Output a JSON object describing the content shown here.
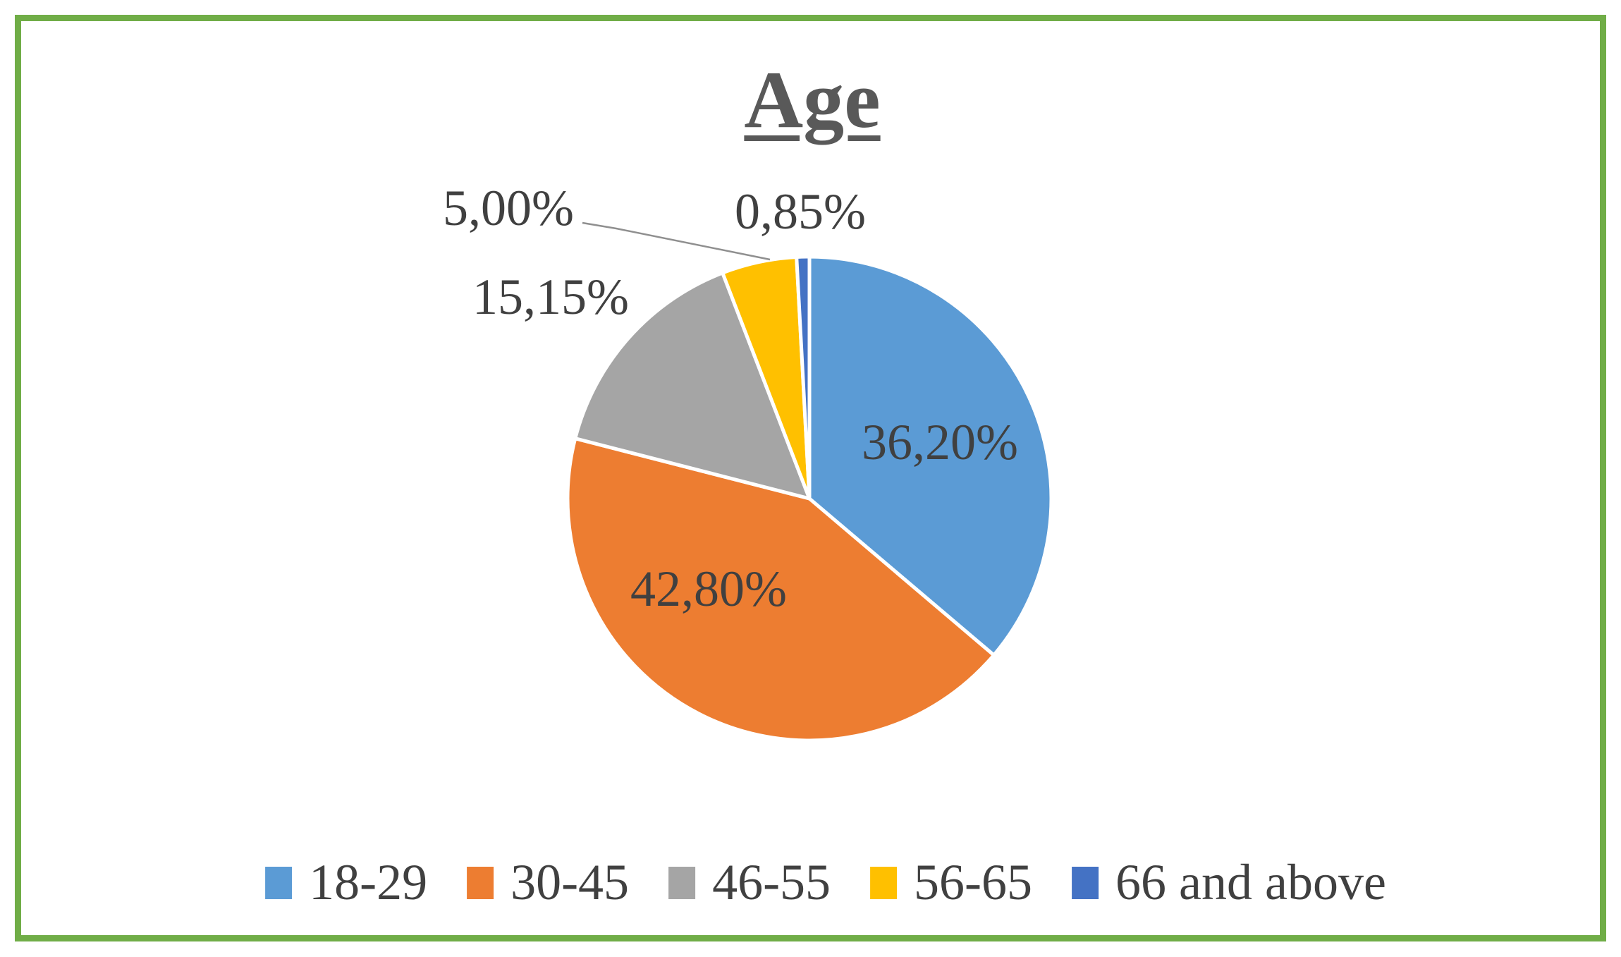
{
  "figure": {
    "border_color": "#70AD47",
    "background_color": "#FFFFFF",
    "title_color": "#595959",
    "label_color": "#404040"
  },
  "chart_data": {
    "type": "pie",
    "title": "Age",
    "categories": [
      "18-29",
      "30-45",
      "46-55",
      "56-65",
      "66 and above"
    ],
    "values": [
      36.2,
      42.8,
      15.15,
      5.0,
      0.85
    ],
    "labels": [
      "36,20%",
      "42,80%",
      "15,15%",
      "5,00%",
      "0,85%"
    ],
    "colors": [
      "#5B9BD5",
      "#ED7D31",
      "#A5A5A5",
      "#FFC000",
      "#4472C4"
    ],
    "start_angle_deg": 0,
    "direction": "clockwise",
    "legend_position": "bottom",
    "decimal_separator": ",",
    "labels_outside": [
      "15,15%",
      "5,00%",
      "0,85%"
    ],
    "labels_inside": [
      "36,20%",
      "42,80%"
    ]
  }
}
